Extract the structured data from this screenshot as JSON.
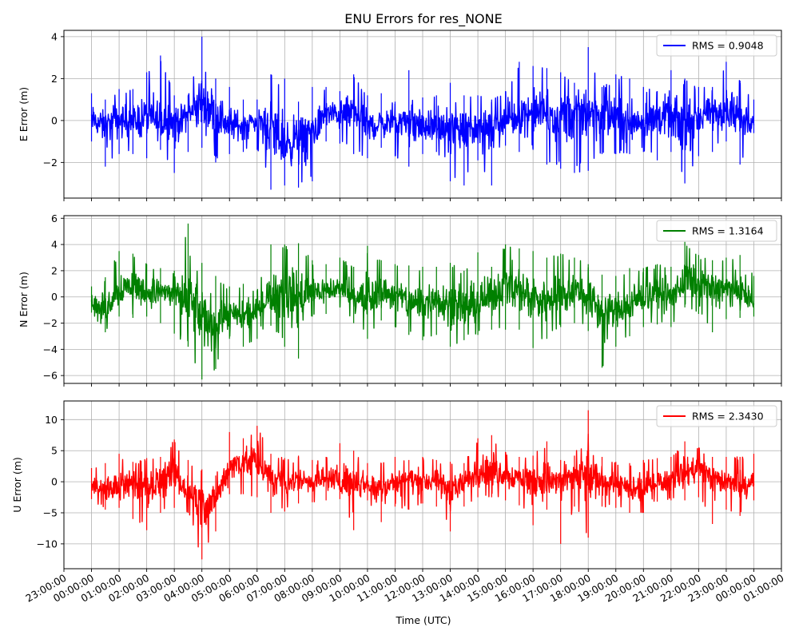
{
  "chart_data": {
    "type": "line",
    "title": "ENU Errors for res_NONE",
    "xlabel": "Time (UTC)",
    "x_tick_labels": [
      "23:00:00",
      "00:00:00",
      "01:00:00",
      "02:00:00",
      "03:00:00",
      "04:00:00",
      "05:00:00",
      "06:00:00",
      "07:00:00",
      "08:00:00",
      "09:00:00",
      "10:00:00",
      "11:00:00",
      "12:00:00",
      "13:00:00",
      "14:00:00",
      "15:00:00",
      "16:00:00",
      "17:00:00",
      "18:00:00",
      "19:00:00",
      "20:00:00",
      "21:00:00",
      "22:00:00",
      "23:00:00",
      "00:00:00",
      "01:00:00"
    ],
    "x_range_hours": [
      -1.0,
      25.0
    ],
    "x_data_range_hours": [
      0.0,
      24.0
    ],
    "grid": true,
    "legend_position": "top-right",
    "panels": [
      {
        "ylabel": "E Error (m)",
        "ylim": [
          -3.7,
          4.3
        ],
        "yticks": [
          -2,
          0,
          2,
          4
        ],
        "ytick_labels": [
          "−2",
          "0",
          "2",
          "4"
        ],
        "series": [
          {
            "name": "RMS = 0.9048",
            "color": "#0000ff",
            "x": [
              0.0,
              0.5,
              1.0,
              1.5,
              2.0,
              2.5,
              3.0,
              3.5,
              4.0,
              4.5,
              5.0,
              5.5,
              6.0,
              6.5,
              7.0,
              7.5,
              8.0,
              8.5,
              9.0,
              9.5,
              10.0,
              10.5,
              11.0,
              11.5,
              12.0,
              12.5,
              13.0,
              13.5,
              14.0,
              14.5,
              15.0,
              15.5,
              16.0,
              16.5,
              17.0,
              17.5,
              18.0,
              18.5,
              19.0,
              19.5,
              20.0,
              20.5,
              21.0,
              21.5,
              22.0,
              22.5,
              23.0,
              23.5,
              24.0
            ],
            "mean": [
              0.0,
              -0.2,
              0.0,
              -0.1,
              0.2,
              -0.3,
              0.0,
              0.3,
              0.8,
              0.5,
              -0.3,
              -0.2,
              0.0,
              -0.3,
              -1.2,
              -0.8,
              -0.5,
              0.3,
              0.3,
              0.5,
              -0.3,
              -0.2,
              0.0,
              -0.1,
              -0.3,
              -0.4,
              -0.5,
              -0.2,
              -0.3,
              -0.4,
              0.0,
              0.2,
              0.4,
              0.3,
              0.2,
              0.4,
              0.5,
              0.3,
              0.1,
              -0.1,
              0.0,
              0.3,
              0.1,
              -0.4,
              0.2,
              0.4,
              0.3,
              0.0,
              0.0
            ],
            "min": [
              -1.0,
              -2.2,
              -1.6,
              -1.6,
              -1.8,
              -1.4,
              -2.5,
              -1.5,
              -1.3,
              -2.0,
              -1.6,
              -1.5,
              -1.4,
              -3.3,
              -3.1,
              -3.2,
              -2.9,
              -1.0,
              -1.1,
              -1.6,
              -1.8,
              -1.3,
              -1.7,
              -2.2,
              -1.6,
              -1.5,
              -2.9,
              -3.1,
              -1.9,
              -3.1,
              -1.2,
              -1.5,
              -1.4,
              -2.1,
              -2.3,
              -2.5,
              -2.4,
              -1.6,
              -1.6,
              -1.6,
              -1.5,
              -1.9,
              -1.5,
              -3.0,
              -1.7,
              -1.5,
              -1.0,
              -2.1,
              -0.6
            ],
            "max": [
              1.3,
              1.0,
              1.5,
              1.5,
              2.3,
              3.1,
              1.2,
              1.2,
              4.0,
              2.0,
              1.6,
              1.0,
              1.0,
              2.2,
              2.0,
              0.9,
              1.6,
              1.6,
              1.4,
              2.2,
              1.2,
              1.3,
              0.9,
              2.4,
              1.1,
              1.2,
              1.8,
              1.2,
              1.2,
              1.0,
              1.4,
              2.8,
              2.6,
              2.5,
              2.3,
              1.8,
              3.5,
              1.6,
              2.2,
              2.0,
              1.6,
              1.4,
              2.4,
              2.0,
              1.6,
              1.6,
              2.8,
              1.9,
              1.0
            ]
          }
        ]
      },
      {
        "ylabel": "N Error (m)",
        "ylim": [
          -6.6,
          6.2
        ],
        "yticks": [
          -6,
          -4,
          -2,
          0,
          2,
          4,
          6
        ],
        "ytick_labels": [
          "−6",
          "−4",
          "−2",
          "0",
          "2",
          "4",
          "6"
        ],
        "series": [
          {
            "name": "RMS = 1.3164",
            "color": "#008000",
            "x": [
              0.0,
              0.5,
              1.0,
              1.5,
              2.0,
              2.5,
              3.0,
              3.5,
              4.0,
              4.5,
              5.0,
              5.5,
              6.0,
              6.5,
              7.0,
              7.5,
              8.0,
              8.5,
              9.0,
              9.5,
              10.0,
              10.5,
              11.0,
              11.5,
              12.0,
              12.5,
              13.0,
              13.5,
              14.0,
              14.5,
              15.0,
              15.5,
              16.0,
              16.5,
              17.0,
              17.5,
              18.0,
              18.5,
              19.0,
              19.5,
              20.0,
              20.5,
              21.0,
              21.5,
              22.0,
              22.5,
              23.0,
              23.5,
              24.0
            ],
            "mean": [
              -0.5,
              -1.0,
              0.5,
              1.0,
              0.3,
              0.5,
              0.3,
              -0.5,
              -1.5,
              -2.0,
              -1.5,
              -1.5,
              -1.2,
              0.3,
              0.3,
              0.0,
              0.3,
              0.5,
              0.5,
              0.0,
              -0.3,
              0.3,
              0.2,
              -0.5,
              -0.5,
              0.0,
              -0.5,
              -1.0,
              -0.5,
              0.0,
              1.0,
              0.5,
              0.0,
              -0.3,
              0.0,
              0.5,
              0.0,
              -1.0,
              -1.0,
              -0.8,
              0.0,
              0.3,
              0.0,
              1.0,
              1.0,
              0.8,
              0.6,
              0.3,
              -0.5
            ],
            "min": [
              -1.2,
              -2.7,
              -1.5,
              -1.6,
              -1.5,
              -2.0,
              -2.8,
              -3.8,
              -6.3,
              -5.5,
              -3.2,
              -3.8,
              -3.2,
              -2.2,
              -3.8,
              -4.7,
              -1.5,
              -1.3,
              -0.8,
              -2.0,
              -3.2,
              -1.8,
              -2.3,
              -2.9,
              -3.3,
              -2.9,
              -3.8,
              -3.3,
              -2.9,
              -2.5,
              -2.5,
              -2.5,
              -3.9,
              -3.2,
              -2.3,
              -2.0,
              -2.6,
              -5.4,
              -3.8,
              -3.0,
              -2.3,
              -2.1,
              -2.3,
              -0.8,
              -1.3,
              -2.7,
              -1.7,
              -1.6,
              -1.5
            ],
            "max": [
              0.8,
              1.5,
              3.5,
              3.3,
              2.5,
              2.2,
              2.0,
              5.6,
              2.6,
              1.6,
              0.8,
              1.0,
              0.5,
              4.0,
              4.0,
              4.1,
              2.8,
              2.5,
              3.0,
              2.3,
              3.9,
              2.8,
              2.5,
              2.4,
              2.3,
              2.3,
              2.6,
              2.0,
              3.4,
              2.3,
              4.0,
              3.7,
              3.5,
              3.0,
              3.3,
              3.0,
              2.5,
              1.7,
              1.6,
              2.2,
              2.2,
              2.5,
              2.3,
              4.2,
              3.2,
              2.8,
              3.0,
              3.2,
              1.6
            ]
          }
        ]
      },
      {
        "ylabel": "U Error (m)",
        "ylim": [
          -14.0,
          13.0
        ],
        "yticks": [
          -10,
          -5,
          0,
          5,
          10
        ],
        "ytick_labels": [
          "−10",
          "−5",
          "0",
          "5",
          "10"
        ],
        "series": [
          {
            "name": "RMS = 2.3430",
            "color": "#ff0000",
            "x": [
              0.0,
              0.5,
              1.0,
              1.5,
              2.0,
              2.5,
              3.0,
              3.5,
              4.0,
              4.5,
              5.0,
              5.5,
              6.0,
              6.5,
              7.0,
              7.5,
              8.0,
              8.5,
              9.0,
              9.5,
              10.0,
              10.5,
              11.0,
              11.5,
              12.0,
              12.5,
              13.0,
              13.5,
              14.0,
              14.5,
              15.0,
              15.5,
              16.0,
              16.5,
              17.0,
              17.5,
              18.0,
              18.5,
              19.0,
              19.5,
              20.0,
              20.5,
              21.0,
              21.5,
              22.0,
              22.5,
              23.0,
              23.5,
              24.0
            ],
            "mean": [
              -0.5,
              -1.5,
              -1.0,
              0.0,
              -1.0,
              0.5,
              0.0,
              -1.5,
              -3.5,
              -3.0,
              2.5,
              3.5,
              3.0,
              0.5,
              0.0,
              0.5,
              0.0,
              0.5,
              0.0,
              0.5,
              -0.5,
              -1.0,
              0.0,
              0.5,
              0.0,
              0.0,
              -1.0,
              -0.5,
              1.5,
              2.0,
              1.0,
              1.0,
              0.5,
              0.0,
              0.5,
              1.0,
              0.5,
              0.5,
              -0.5,
              -1.5,
              -1.5,
              0.0,
              0.5,
              1.5,
              2.5,
              1.0,
              0.0,
              -1.0,
              0.0
            ],
            "min": [
              -2.8,
              -4.5,
              -4.2,
              -6.0,
              -7.8,
              -5.0,
              -4.2,
              -5.0,
              -12.5,
              -8.0,
              -2.0,
              -2.0,
              -2.5,
              -5.0,
              -4.8,
              -3.5,
              -3.3,
              -3.0,
              -2.8,
              -7.8,
              -3.0,
              -6.5,
              -4.0,
              -4.5,
              -3.5,
              -4.0,
              -8.0,
              -4.0,
              -2.5,
              -2.5,
              -3.0,
              -3.8,
              -7.0,
              -4.5,
              -10.0,
              -4.0,
              -9.0,
              -4.0,
              -4.2,
              -5.0,
              -5.0,
              -3.2,
              -3.0,
              -3.0,
              -2.5,
              -6.8,
              -4.5,
              -5.5,
              -3.0
            ],
            "max": [
              2.2,
              3.0,
              4.5,
              3.2,
              3.8,
              4.0,
              6.8,
              3.5,
              2.0,
              1.0,
              8.0,
              7.0,
              9.0,
              4.5,
              3.8,
              4.2,
              3.5,
              4.0,
              6.2,
              5.0,
              3.0,
              3.0,
              4.0,
              3.5,
              4.0,
              3.5,
              3.2,
              3.0,
              7.0,
              7.5,
              4.8,
              4.0,
              4.2,
              6.5,
              3.5,
              4.2,
              11.5,
              4.0,
              3.2,
              3.0,
              3.5,
              3.8,
              4.0,
              6.5,
              5.5,
              4.0,
              4.0,
              4.0,
              4.5
            ]
          }
        ]
      }
    ]
  }
}
